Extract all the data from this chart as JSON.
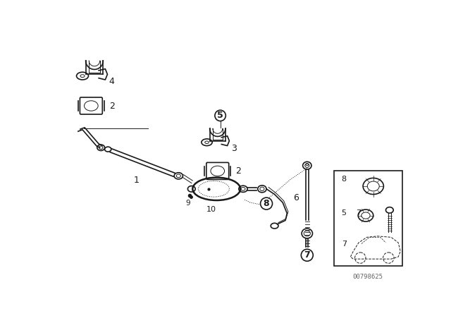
{
  "bg_color": "#ffffff",
  "line_color": "#1a1a1a",
  "watermark": "00798625",
  "fig_width": 6.4,
  "fig_height": 4.48,
  "dpi": 100
}
